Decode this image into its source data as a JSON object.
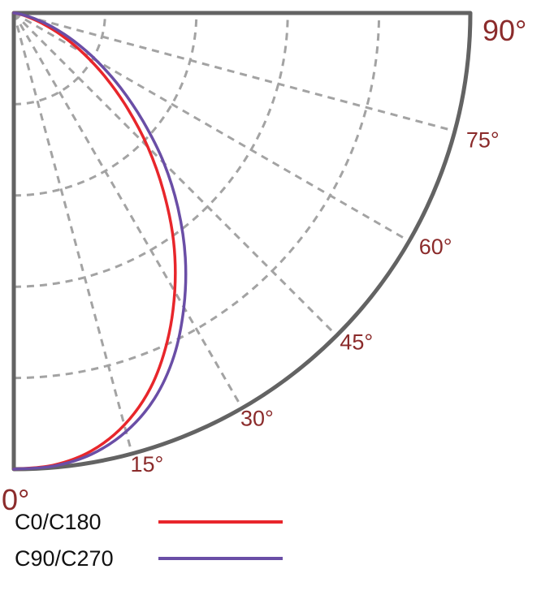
{
  "chart_data": {
    "type": "polar",
    "title": "",
    "angle_unit": "degrees",
    "angle_range": [
      0,
      90
    ],
    "angle_ticks": [
      0,
      15,
      30,
      45,
      60,
      75,
      90
    ],
    "angle_tick_labels": [
      "0°",
      "15°",
      "30°",
      "45°",
      "60°",
      "75°",
      "90°"
    ],
    "radial_range": [
      0,
      1
    ],
    "radial_gridlines": [
      0.2,
      0.4,
      0.6,
      0.8
    ],
    "grid": true,
    "legend_position": "bottom-left",
    "series": [
      {
        "name": "C0/C180",
        "color": "#e8262b",
        "theta": [
          0,
          5,
          10,
          15,
          20,
          25,
          30,
          35,
          40,
          45,
          50,
          55,
          60,
          65,
          70,
          75,
          80,
          85,
          90
        ],
        "r": [
          1.0,
          0.995,
          0.975,
          0.935,
          0.875,
          0.795,
          0.705,
          0.61,
          0.51,
          0.415,
          0.325,
          0.245,
          0.175,
          0.115,
          0.065,
          0.03,
          0.01,
          0.003,
          0.0
        ]
      },
      {
        "name": "C90/C270",
        "color": "#6a4ea6",
        "theta": [
          0,
          5,
          10,
          15,
          20,
          25,
          30,
          35,
          40,
          45,
          50,
          55,
          60,
          65,
          70,
          75,
          80,
          85,
          90
        ],
        "r": [
          1.0,
          0.997,
          0.982,
          0.95,
          0.9,
          0.83,
          0.745,
          0.655,
          0.56,
          0.465,
          0.37,
          0.285,
          0.21,
          0.145,
          0.09,
          0.045,
          0.015,
          0.004,
          0.0
        ]
      }
    ]
  }
}
